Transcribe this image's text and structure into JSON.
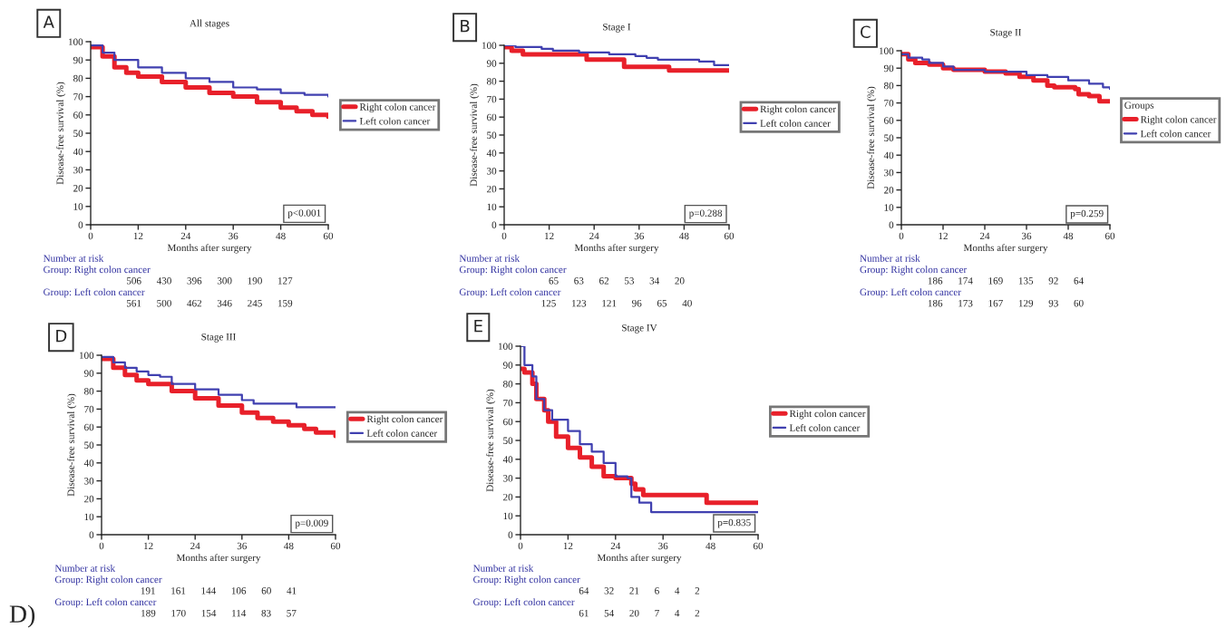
{
  "chart_data": [
    {
      "type": "step",
      "title": "All stages",
      "xlabel": "Months after surgery",
      "ylabel": "Disease-free survival (%)",
      "xlim": [
        0,
        60
      ],
      "xticks": [
        0,
        12,
        24,
        36,
        48,
        60
      ],
      "ylim": [
        0,
        100
      ],
      "yticks": [
        0,
        10,
        20,
        30,
        40,
        50,
        60,
        70,
        80,
        90,
        100
      ],
      "legend": "right",
      "grid": false,
      "series": [
        {
          "name": "Right colon cancer",
          "color": "#e8202a",
          "x": [
            0,
            3,
            6,
            9,
            12,
            18,
            24,
            30,
            36,
            42,
            48,
            52,
            56,
            60
          ],
          "values": [
            97,
            92,
            86,
            83,
            81,
            78,
            75,
            72,
            70,
            67,
            64,
            62,
            60,
            59
          ]
        },
        {
          "name": "Left colon cancer",
          "color": "#4040b0",
          "x": [
            0,
            3,
            6,
            12,
            18,
            24,
            30,
            36,
            42,
            48,
            54,
            60
          ],
          "values": [
            98,
            94,
            90,
            86,
            83,
            80,
            78,
            75,
            74,
            72,
            71,
            70
          ]
        }
      ],
      "annotations": [
        "A",
        "p<0.001",
        "Number at risk",
        "Group: Right colon cancer",
        "506      430      396      300      190      127",
        "Group: Left colon cancer",
        "561      500      462      346      245      159"
      ]
    },
    {
      "type": "step",
      "title": "Stage I",
      "xlabel": "Months after surgery",
      "ylabel": "Disease-free survival (%)",
      "xlim": [
        0,
        60
      ],
      "xticks": [
        0,
        12,
        24,
        36,
        48,
        60
      ],
      "ylim": [
        0,
        100
      ],
      "yticks": [
        0,
        10,
        20,
        30,
        40,
        50,
        60,
        70,
        80,
        90,
        100
      ],
      "legend": "right",
      "grid": false,
      "series": [
        {
          "name": "Right colon cancer",
          "color": "#e8202a",
          "x": [
            0,
            2,
            5,
            21,
            22,
            31,
            32,
            43,
            44,
            60
          ],
          "values": [
            99,
            97,
            95,
            95,
            92,
            92,
            88,
            88,
            86,
            86
          ]
        },
        {
          "name": "Left colon cancer",
          "color": "#4040b0",
          "x": [
            0,
            3,
            10,
            13,
            20,
            28,
            35,
            38,
            41,
            52,
            56,
            60
          ],
          "values": [
            100,
            99,
            98,
            97,
            96,
            95,
            94,
            93,
            92,
            91,
            89,
            89
          ]
        }
      ],
      "annotations": [
        "B",
        "p=0.288",
        "Number at risk",
        "Group: Right colon cancer",
        "65      63      62      53      34      20",
        "Group: Left colon cancer",
        "125      123      121      96      65      40"
      ]
    },
    {
      "type": "step",
      "title": "Stage II",
      "xlabel": "Months after surgery",
      "ylabel": "Disease-free survival (%)",
      "xlim": [
        0,
        60
      ],
      "xticks": [
        0,
        12,
        24,
        36,
        48,
        60
      ],
      "ylim": [
        0,
        100
      ],
      "yticks": [
        0,
        10,
        20,
        30,
        40,
        50,
        60,
        70,
        80,
        90,
        100
      ],
      "legend": "right",
      "legend_title": "Groups",
      "grid": false,
      "series": [
        {
          "name": "Right colon cancer",
          "color": "#e8202a",
          "x": [
            0,
            2,
            4,
            8,
            12,
            15,
            24,
            30,
            34,
            38,
            42,
            44,
            50,
            51,
            54,
            57,
            60
          ],
          "values": [
            98,
            95,
            93,
            92,
            90,
            89,
            88,
            87,
            85,
            83,
            80,
            79,
            78,
            75,
            74,
            71,
            71
          ]
        },
        {
          "name": "Left colon cancer",
          "color": "#4040b0",
          "x": [
            0,
            2,
            6,
            8,
            12,
            15,
            24,
            30,
            36,
            42,
            48,
            54,
            58,
            60
          ],
          "values": [
            98,
            96,
            95,
            93,
            91,
            89,
            88,
            88,
            86,
            85,
            83,
            81,
            79,
            78
          ]
        }
      ],
      "annotations": [
        "C",
        "p=0.259",
        "Number at risk",
        "Group: Right colon cancer",
        "186      174      169      135      92      64",
        "Group: Left colon cancer",
        "186      173      167      129      93      60"
      ]
    },
    {
      "type": "step",
      "title": "Stage III",
      "xlabel": "Months after surgery",
      "ylabel": "Disease-free survival (%)",
      "xlim": [
        0,
        60
      ],
      "xticks": [
        0,
        12,
        24,
        36,
        48,
        60
      ],
      "ylim": [
        0,
        100
      ],
      "yticks": [
        0,
        10,
        20,
        30,
        40,
        50,
        60,
        70,
        80,
        90,
        100
      ],
      "legend": "right",
      "grid": false,
      "series": [
        {
          "name": "Right colon cancer",
          "color": "#e8202a",
          "x": [
            0,
            3,
            6,
            9,
            12,
            18,
            24,
            30,
            36,
            40,
            44,
            48,
            52,
            55,
            60
          ],
          "values": [
            98,
            93,
            89,
            86,
            84,
            80,
            76,
            72,
            68,
            65,
            63,
            61,
            59,
            57,
            55
          ]
        },
        {
          "name": "Left colon cancer",
          "color": "#4040b0",
          "x": [
            0,
            3,
            6,
            9,
            12,
            15,
            18,
            24,
            30,
            36,
            39,
            45,
            50,
            60
          ],
          "values": [
            99,
            96,
            93,
            91,
            89,
            88,
            84,
            81,
            78,
            75,
            73,
            73,
            71,
            71
          ]
        }
      ],
      "annotations": [
        "D",
        "p=0.009",
        "Number at risk",
        "Group: Right colon cancer",
        "191      161      144      106      60      41",
        "Group: Left colon cancer",
        "189      170      154      114      83      57",
        "D)"
      ]
    },
    {
      "type": "step",
      "title": "Stage IV",
      "xlabel": "Months after surgery",
      "ylabel": "Disease-free survival (%)",
      "xlim": [
        0,
        60
      ],
      "xticks": [
        0,
        12,
        24,
        36,
        48,
        60
      ],
      "ylim": [
        0,
        100
      ],
      "yticks": [
        0,
        10,
        20,
        30,
        40,
        50,
        60,
        70,
        80,
        90,
        100
      ],
      "legend": "right",
      "grid": false,
      "series": [
        {
          "name": "Right colon cancer",
          "color": "#e8202a",
          "x": [
            0,
            1,
            3,
            4,
            6,
            7,
            9,
            12,
            15,
            18,
            21,
            24,
            27,
            28,
            29,
            31,
            46,
            47,
            60
          ],
          "values": [
            88,
            86,
            80,
            72,
            66,
            60,
            52,
            46,
            41,
            36,
            31,
            30,
            30,
            27,
            24,
            21,
            21,
            17,
            17
          ]
        },
        {
          "name": "Left colon cancer",
          "color": "#4040b0",
          "x": [
            0,
            1,
            3,
            4,
            6,
            8,
            12,
            15,
            18,
            21,
            24,
            27,
            28,
            30,
            33,
            60
          ],
          "values": [
            100,
            90,
            84,
            72,
            66,
            61,
            55,
            48,
            44,
            38,
            31,
            30,
            20,
            17,
            12,
            12
          ]
        }
      ],
      "annotations": [
        "E",
        "p=0.835",
        "Number at risk",
        "Group: Right colon cancer",
        "64      32      21      6      4      2",
        "Group: Left colon cancer",
        "61      54      20      7      4      2"
      ]
    }
  ]
}
